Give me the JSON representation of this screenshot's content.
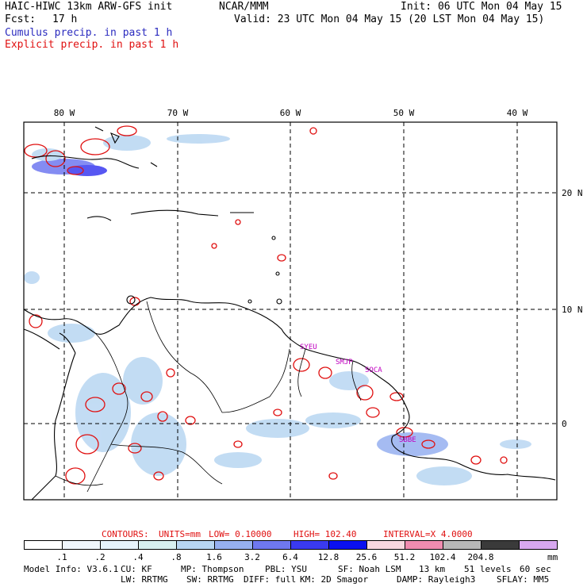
{
  "header": {
    "model": "HAIC-HIWC 13km ARW-GFS init",
    "org": "NCAR/MMM",
    "fcst_label": "Fcst:",
    "fcst_value": "17 h",
    "init": "Init: 06 UTC Mon 04 May 15",
    "valid": "Valid: 23 UTC Mon 04 May 15 (20 LST Mon 04 May 15)",
    "cumulus": "Cumulus precip. in past 1 h",
    "explicit": "Explicit precip. in past 1 h"
  },
  "map": {
    "lon_labels": [
      "80 W",
      "70 W",
      "60 W",
      "50 W",
      "40 W"
    ],
    "lat_labels": [
      "20 N",
      "10 N",
      "0"
    ],
    "stations": [
      "SYEU",
      "SMJP",
      "SOCA",
      "SBBE"
    ],
    "colors": {
      "cumulus": "#2b2bbf",
      "explicit": "#e01010",
      "coast": "#000000"
    }
  },
  "contour_info": {
    "contours": "CONTOURS:",
    "units": "UNITS=mm",
    "low": "LOW= 0.10000",
    "high": "HIGH= 102.40",
    "interval": "INTERVAL=X 4.0000"
  },
  "colorbar": {
    "labels": [
      ".1",
      ".2",
      ".4",
      ".8",
      "1.6",
      "3.2",
      "6.4",
      "12.8",
      "25.6",
      "51.2",
      "102.4",
      "204.8"
    ],
    "unit": "mm",
    "colors": [
      "#ffffff",
      "#f0f6fc",
      "#e6f3fb",
      "#d8f0f0",
      "#b8d6f2",
      "#96b0f0",
      "#6f78f0",
      "#3a3af0",
      "#0a10f0",
      "#f8d8e0",
      "#f08cb0",
      "#b8b8b8",
      "#3a3a3a",
      "#d8a8f0"
    ]
  },
  "footer": {
    "line1": [
      "Model Info: V3.6.1",
      "CU: KF",
      "MP: Thompson",
      "PBL: YSU",
      "SF: Noah LSM",
      "13 km",
      "51 levels",
      "60 sec"
    ],
    "line2": [
      "LW: RRTMG",
      "SW: RRTMG",
      "DIFF: full",
      "KM: 2D Smagor",
      "DAMP: Rayleigh3",
      "SFLAY: MM5"
    ]
  }
}
